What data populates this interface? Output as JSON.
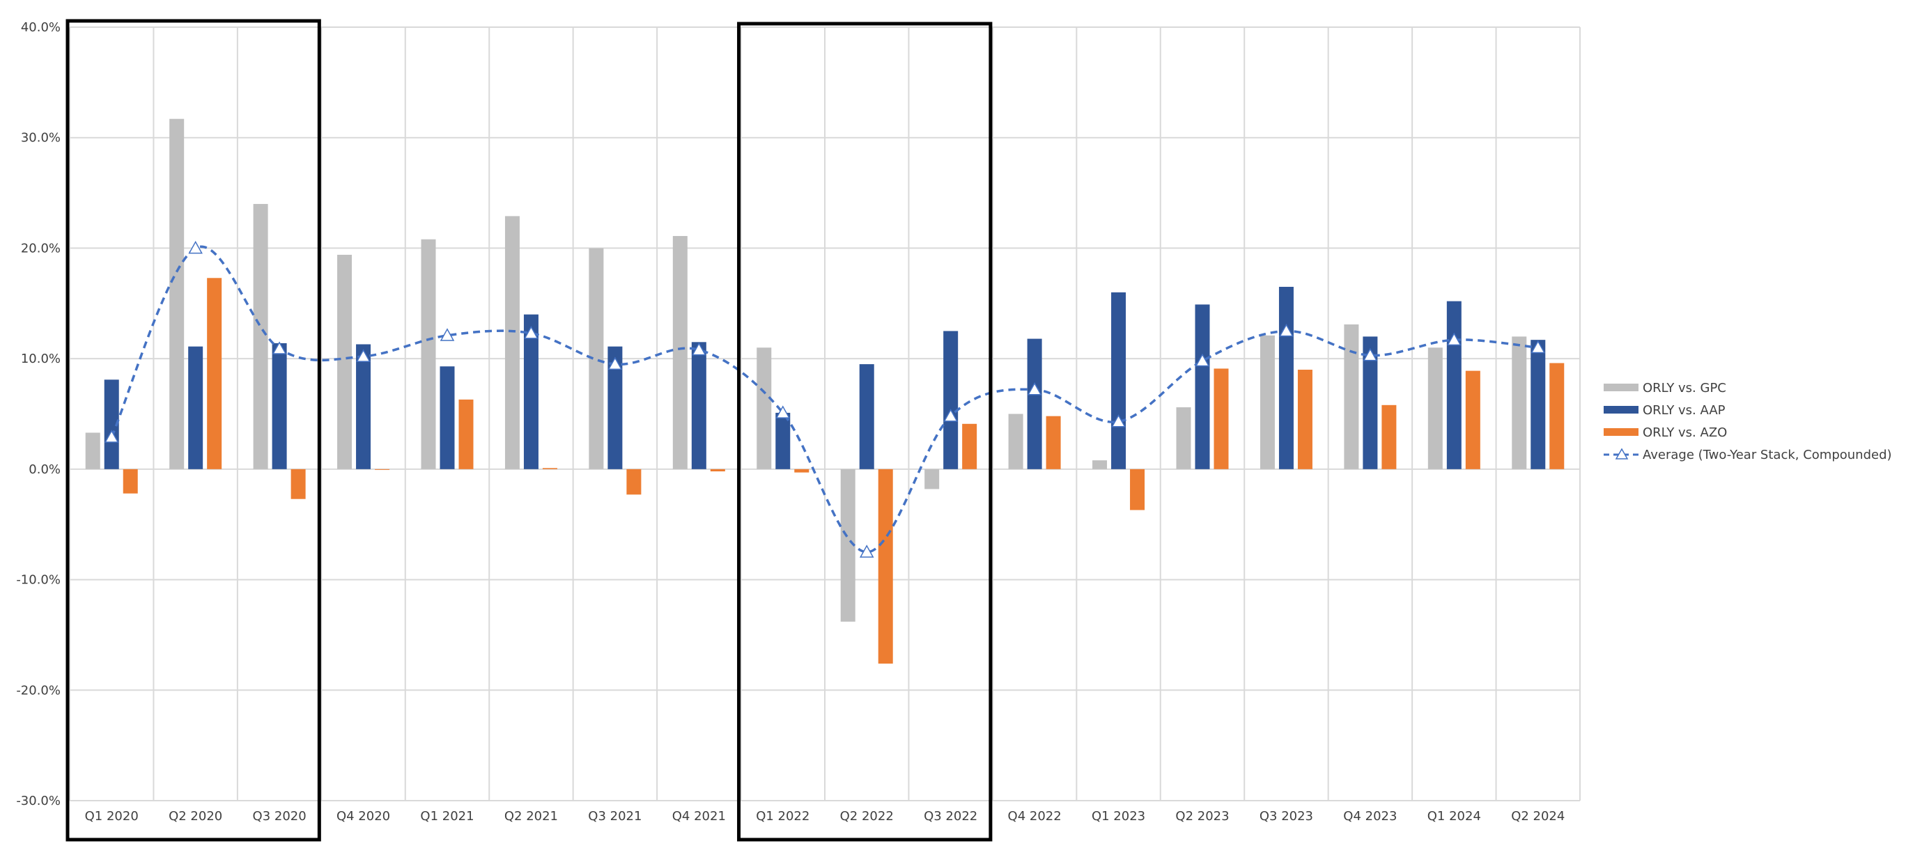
{
  "chart_data": {
    "type": "bar",
    "categories": [
      "Q1 2020",
      "Q2 2020",
      "Q3 2020",
      "Q4 2020",
      "Q1 2021",
      "Q2 2021",
      "Q3 2021",
      "Q4 2021",
      "Q1 2022",
      "Q2 2022",
      "Q3 2022",
      "Q4 2022",
      "Q1 2023",
      "Q2 2023",
      "Q3 2023",
      "Q4 2023",
      "Q1 2024",
      "Q2 2024"
    ],
    "series": [
      {
        "name": "ORLY vs. GPC",
        "kind": "bar",
        "color": "#bfbfbf",
        "values": [
          3.3,
          31.7,
          24.0,
          19.4,
          20.8,
          22.9,
          20.0,
          21.1,
          11.0,
          -13.8,
          -1.8,
          5.0,
          0.8,
          5.6,
          12.1,
          13.1,
          11.0,
          12.0
        ]
      },
      {
        "name": "ORLY vs. AAP",
        "kind": "bar",
        "color": "#2f5597",
        "values": [
          8.1,
          11.1,
          11.4,
          11.3,
          9.3,
          14.0,
          11.1,
          11.5,
          5.1,
          9.5,
          12.5,
          11.8,
          16.0,
          14.9,
          16.5,
          12.0,
          15.2,
          11.7
        ]
      },
      {
        "name": "ORLY vs. AZO",
        "kind": "bar",
        "color": "#ed7d31",
        "values": [
          -2.2,
          17.3,
          -2.7,
          0.0,
          6.3,
          0.1,
          -2.3,
          -0.2,
          -0.3,
          -17.6,
          4.1,
          4.8,
          -3.7,
          9.1,
          9.0,
          5.8,
          8.9,
          9.6
        ]
      },
      {
        "name": "Average (Two-Year Stack, Compounded)",
        "kind": "line",
        "color": "#4472c4",
        "values": [
          2.9,
          20.0,
          10.9,
          10.2,
          12.1,
          12.3,
          9.5,
          10.8,
          5.1,
          -7.5,
          4.8,
          7.2,
          4.3,
          9.8,
          12.5,
          10.3,
          11.7,
          11.0
        ]
      }
    ],
    "yticks": [
      40.0,
      30.0,
      20.0,
      10.0,
      0.0,
      -10.0,
      -20.0,
      -30.0
    ],
    "ytick_labels": [
      "40.0%",
      "30.0%",
      "20.0%",
      "10.0%",
      "0.0%",
      "-10.0%",
      "-20.0%",
      "-30.0%"
    ],
    "ylim": [
      -30,
      40
    ],
    "grid": true,
    "legend_position": "right",
    "highlight_boxes": [
      {
        "from": "Q1 2020",
        "to": "Q3 2020"
      },
      {
        "from": "Q1 2022",
        "to": "Q3 2022"
      }
    ]
  }
}
